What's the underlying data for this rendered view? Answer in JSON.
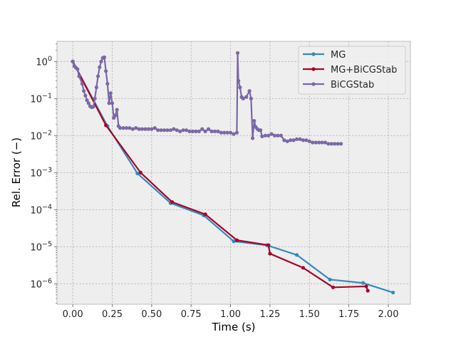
{
  "chart_data": {
    "type": "line",
    "xlabel": "Time (s)",
    "ylabel": "Rel. Error (−)",
    "xlim": [
      -0.1,
      2.14
    ],
    "ylim": [
      2.8e-07,
      3.5
    ],
    "yscale": "log",
    "grid": true,
    "legend_position": "top-right",
    "x_ticks": [
      {
        "value": 0.0,
        "label": "0.00"
      },
      {
        "value": 0.25,
        "label": "0.25"
      },
      {
        "value": 0.5,
        "label": "0.50"
      },
      {
        "value": 0.75,
        "label": "0.75"
      },
      {
        "value": 1.0,
        "label": "1.00"
      },
      {
        "value": 1.25,
        "label": "1.25"
      },
      {
        "value": 1.5,
        "label": "1.50"
      },
      {
        "value": 1.75,
        "label": "1.75"
      },
      {
        "value": 2.0,
        "label": "2.00"
      }
    ],
    "y_ticks": [
      {
        "value": 1,
        "base": "10",
        "exp": "0"
      },
      {
        "value": 0.1,
        "base": "10",
        "exp": "−1"
      },
      {
        "value": 0.01,
        "base": "10",
        "exp": "−2"
      },
      {
        "value": 0.001,
        "base": "10",
        "exp": "−3"
      },
      {
        "value": 0.0001,
        "base": "10",
        "exp": "−4"
      },
      {
        "value": 1e-05,
        "base": "10",
        "exp": "−5"
      },
      {
        "value": 1e-06,
        "base": "10",
        "exp": "−6"
      }
    ],
    "series": [
      {
        "name": "MG",
        "color": "#348ABD",
        "points": [
          [
            0.0,
            1.0
          ],
          [
            0.22,
            0.018
          ],
          [
            0.41,
            0.00095
          ],
          [
            0.62,
            0.00015
          ],
          [
            0.83,
            7e-05
          ],
          [
            1.02,
            1.4e-05
          ],
          [
            1.23,
            1.1e-05
          ],
          [
            1.42,
            6e-06
          ],
          [
            1.63,
            1.3e-06
          ],
          [
            1.84,
            1.05e-06
          ],
          [
            2.03,
            5.8e-07
          ]
        ]
      },
      {
        "name": "MG+BiCGStab",
        "color": "#A60628",
        "points": [
          [
            0.0,
            1.0
          ],
          [
            0.21,
            0.019
          ],
          [
            0.43,
            0.001
          ],
          [
            0.63,
            0.00016
          ],
          [
            0.84,
            7.5e-05
          ],
          [
            1.04,
            1.5e-05
          ],
          [
            1.24,
            1.1e-05
          ],
          [
            1.25,
            6.5e-06
          ],
          [
            1.46,
            2.7e-06
          ],
          [
            1.65,
            8e-07
          ],
          [
            1.86,
            8.5e-07
          ],
          [
            1.87,
            6.5e-07
          ]
        ]
      },
      {
        "name": "BiCGStab",
        "color": "#7A68A6",
        "points": [
          [
            0.0,
            1.0
          ],
          [
            0.01,
            0.75
          ],
          [
            0.02,
            0.68
          ],
          [
            0.03,
            0.62
          ],
          [
            0.04,
            0.4
          ],
          [
            0.06,
            0.25
          ],
          [
            0.07,
            0.16
          ],
          [
            0.08,
            0.12
          ],
          [
            0.09,
            0.09
          ],
          [
            0.1,
            0.075
          ],
          [
            0.11,
            0.062
          ],
          [
            0.12,
            0.058
          ],
          [
            0.13,
            0.06
          ],
          [
            0.14,
            0.1
          ],
          [
            0.15,
            0.2
          ],
          [
            0.16,
            0.4
          ],
          [
            0.17,
            0.7
          ],
          [
            0.18,
            1.0
          ],
          [
            0.19,
            1.25
          ],
          [
            0.2,
            1.3
          ],
          [
            0.21,
            0.55
          ],
          [
            0.22,
            0.25
          ],
          [
            0.23,
            0.075
          ],
          [
            0.24,
            0.14
          ],
          [
            0.25,
            0.075
          ],
          [
            0.26,
            0.03
          ],
          [
            0.27,
            0.035
          ],
          [
            0.28,
            0.05
          ],
          [
            0.29,
            0.018
          ],
          [
            0.3,
            0.016
          ],
          [
            0.32,
            0.016
          ],
          [
            0.34,
            0.016
          ],
          [
            0.36,
            0.016
          ],
          [
            0.38,
            0.015
          ],
          [
            0.4,
            0.016
          ],
          [
            0.42,
            0.015
          ],
          [
            0.44,
            0.015
          ],
          [
            0.46,
            0.015
          ],
          [
            0.48,
            0.015
          ],
          [
            0.5,
            0.015
          ],
          [
            0.52,
            0.016
          ],
          [
            0.54,
            0.014
          ],
          [
            0.56,
            0.014
          ],
          [
            0.58,
            0.014
          ],
          [
            0.6,
            0.014
          ],
          [
            0.62,
            0.014
          ],
          [
            0.64,
            0.015
          ],
          [
            0.66,
            0.014
          ],
          [
            0.68,
            0.013
          ],
          [
            0.7,
            0.014
          ],
          [
            0.72,
            0.014
          ],
          [
            0.74,
            0.013
          ],
          [
            0.76,
            0.013
          ],
          [
            0.78,
            0.013
          ],
          [
            0.8,
            0.013
          ],
          [
            0.82,
            0.015
          ],
          [
            0.84,
            0.013
          ],
          [
            0.86,
            0.015
          ],
          [
            0.88,
            0.013
          ],
          [
            0.9,
            0.013
          ],
          [
            0.92,
            0.013
          ],
          [
            0.94,
            0.012
          ],
          [
            0.96,
            0.012
          ],
          [
            0.98,
            0.012
          ],
          [
            1.0,
            0.012
          ],
          [
            1.02,
            0.011
          ],
          [
            1.04,
            0.012
          ],
          [
            1.045,
            1.7
          ],
          [
            1.05,
            0.3
          ],
          [
            1.06,
            0.2
          ],
          [
            1.07,
            0.11
          ],
          [
            1.08,
            0.1
          ],
          [
            1.1,
            0.11
          ],
          [
            1.12,
            0.16
          ],
          [
            1.13,
            0.1
          ],
          [
            1.14,
            0.0085
          ],
          [
            1.15,
            0.025
          ],
          [
            1.16,
            0.017
          ],
          [
            1.17,
            0.015
          ],
          [
            1.18,
            0.014
          ],
          [
            1.19,
            0.014
          ],
          [
            1.2,
            0.0095
          ],
          [
            1.22,
            0.01
          ],
          [
            1.24,
            0.01
          ],
          [
            1.26,
            0.011
          ],
          [
            1.28,
            0.01
          ],
          [
            1.3,
            0.01
          ],
          [
            1.32,
            0.01
          ],
          [
            1.34,
            0.0075
          ],
          [
            1.36,
            0.007
          ],
          [
            1.38,
            0.0075
          ],
          [
            1.4,
            0.0075
          ],
          [
            1.42,
            0.008
          ],
          [
            1.44,
            0.008
          ],
          [
            1.46,
            0.0075
          ],
          [
            1.48,
            0.0075
          ],
          [
            1.5,
            0.007
          ],
          [
            1.52,
            0.0065
          ],
          [
            1.54,
            0.0065
          ],
          [
            1.56,
            0.0065
          ],
          [
            1.58,
            0.0065
          ],
          [
            1.6,
            0.0065
          ],
          [
            1.62,
            0.006
          ],
          [
            1.64,
            0.006
          ],
          [
            1.66,
            0.006
          ],
          [
            1.68,
            0.006
          ],
          [
            1.7,
            0.006
          ]
        ]
      }
    ]
  }
}
